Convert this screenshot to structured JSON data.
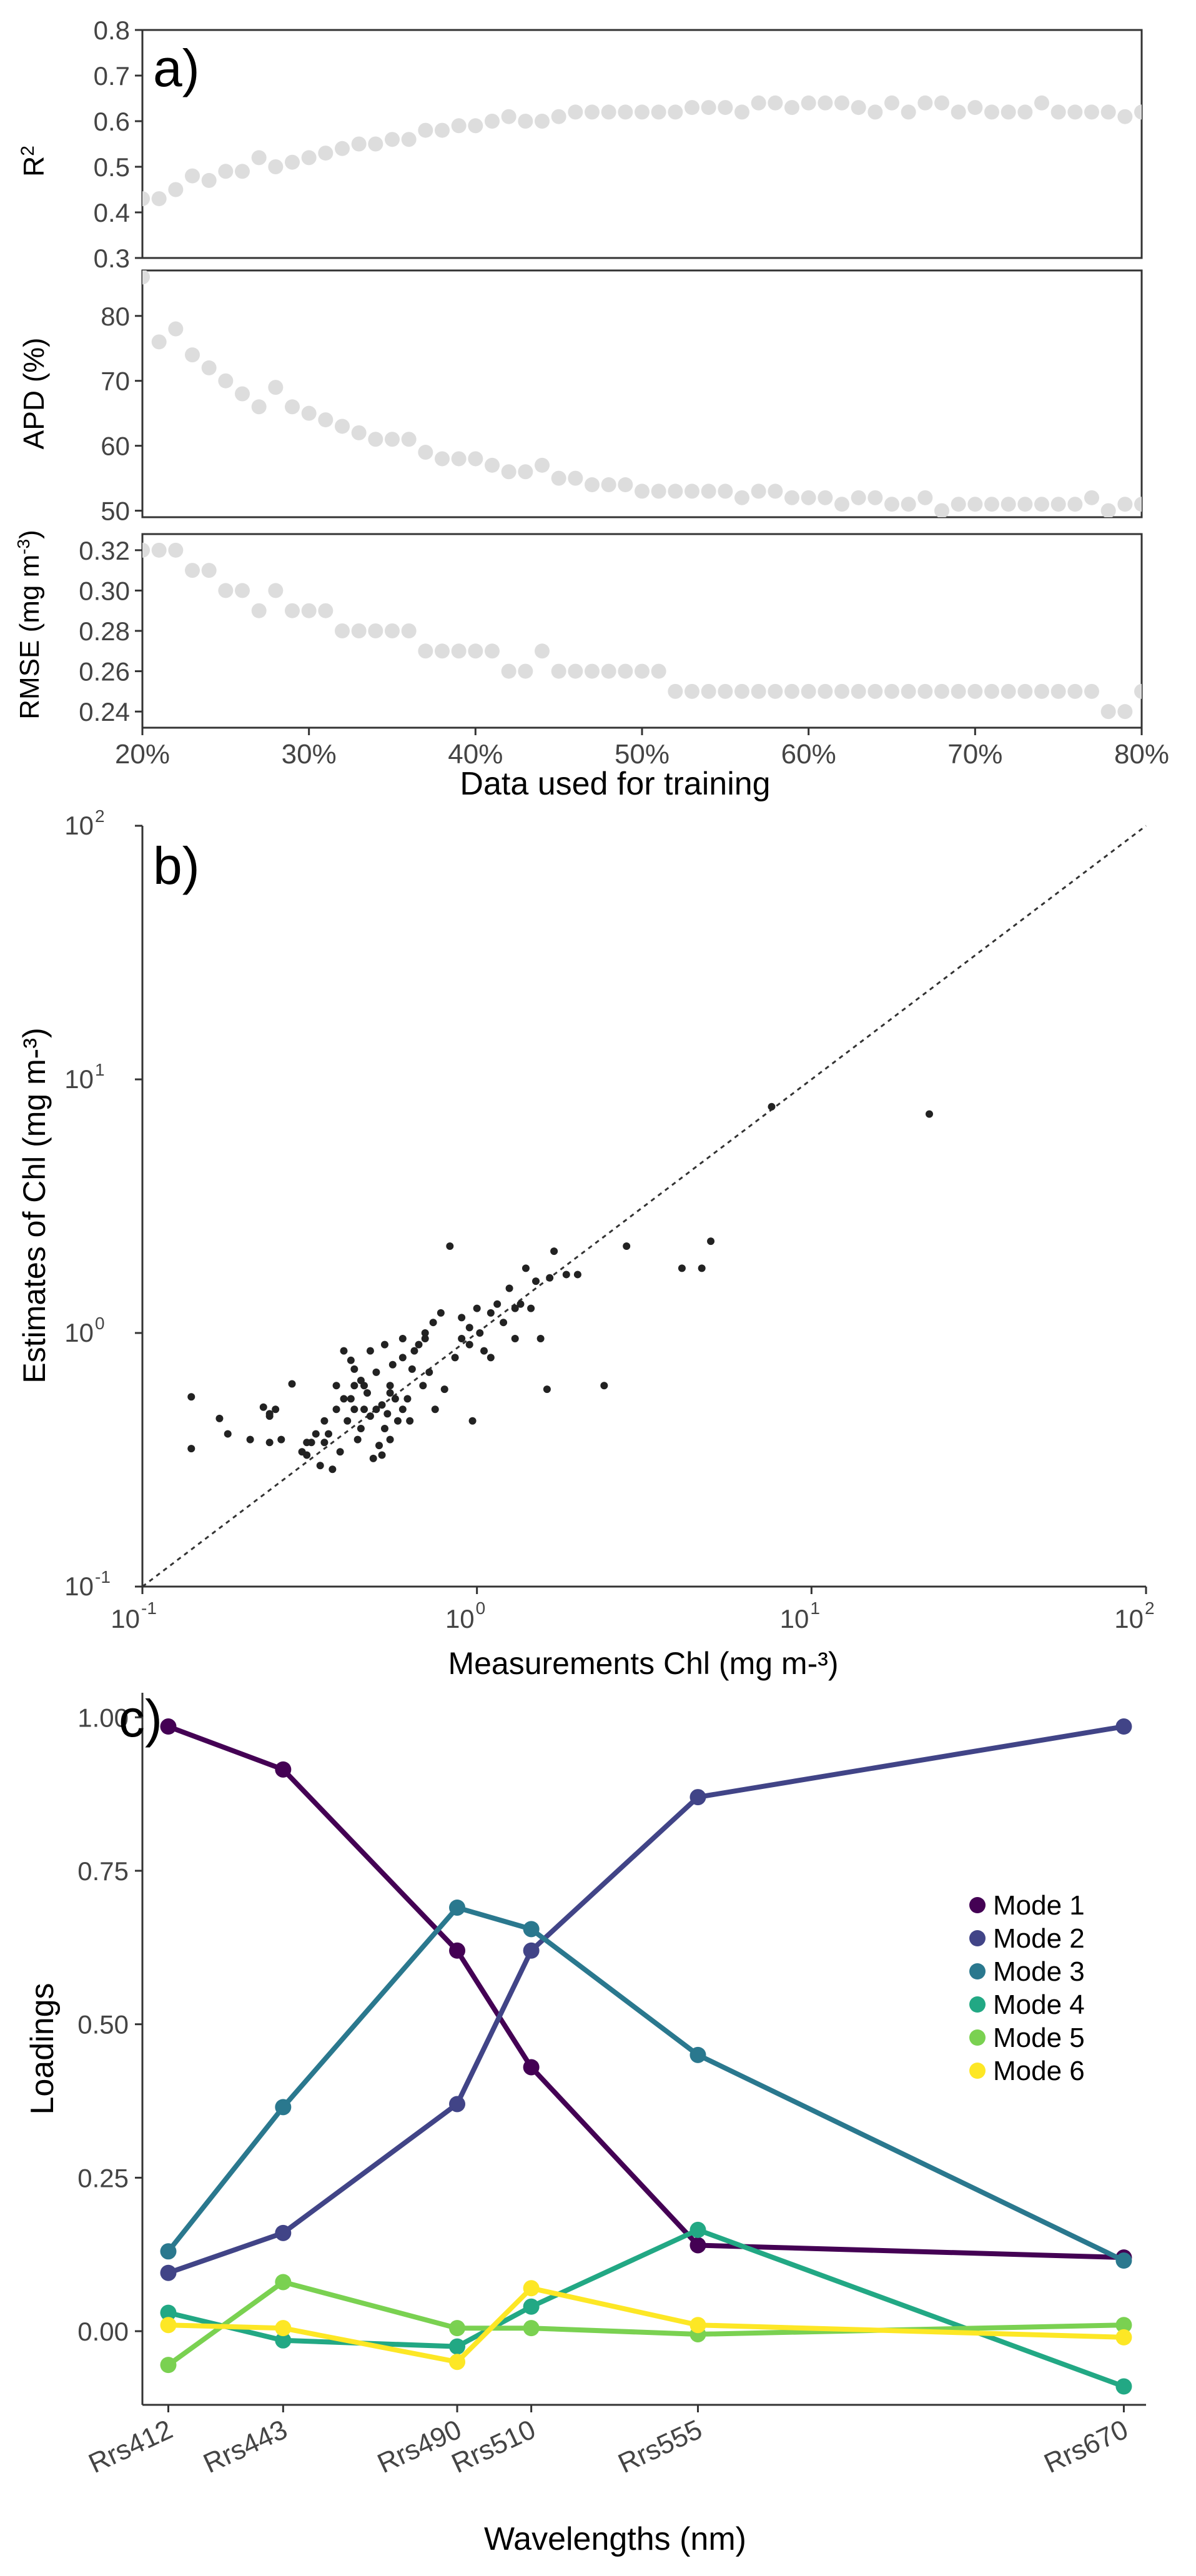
{
  "chart_data": [
    {
      "type": "scatter",
      "panel_label": "a)",
      "xlabel": "Data used for training",
      "x_ticks": [
        "20%",
        "30%",
        "40%",
        "50%",
        "60%",
        "70%",
        "80%"
      ],
      "xlim": [
        20,
        80
      ],
      "point_color": "#dddddd",
      "subplots": [
        {
          "ylabel": "R",
          "ylabel_sup": "2",
          "ylim": [
            0.3,
            0.8
          ],
          "y_ticks": [
            "0.3",
            "0.4",
            "0.5",
            "0.6",
            "0.7",
            "0.8"
          ],
          "y_tick_values": [
            0.3,
            0.4,
            0.5,
            0.6,
            0.7,
            0.8
          ],
          "x": [
            20,
            21,
            22,
            23,
            24,
            25,
            26,
            27,
            28,
            29,
            30,
            31,
            32,
            33,
            34,
            35,
            36,
            37,
            38,
            39,
            40,
            41,
            42,
            43,
            44,
            45,
            46,
            47,
            48,
            49,
            50,
            51,
            52,
            53,
            54,
            55,
            56,
            57,
            58,
            59,
            60,
            61,
            62,
            63,
            64,
            65,
            66,
            67,
            68,
            69,
            70,
            71,
            72,
            73,
            74,
            75,
            76,
            77,
            78,
            79,
            80
          ],
          "y": [
            0.43,
            0.43,
            0.45,
            0.48,
            0.47,
            0.49,
            0.49,
            0.52,
            0.5,
            0.51,
            0.52,
            0.53,
            0.54,
            0.55,
            0.55,
            0.56,
            0.56,
            0.58,
            0.58,
            0.59,
            0.59,
            0.6,
            0.61,
            0.6,
            0.6,
            0.61,
            0.62,
            0.62,
            0.62,
            0.62,
            0.62,
            0.62,
            0.62,
            0.63,
            0.63,
            0.63,
            0.62,
            0.64,
            0.64,
            0.63,
            0.64,
            0.64,
            0.64,
            0.63,
            0.62,
            0.64,
            0.62,
            0.64,
            0.64,
            0.62,
            0.63,
            0.62,
            0.62,
            0.62,
            0.64,
            0.62,
            0.62,
            0.62,
            0.62,
            0.61,
            0.62
          ]
        },
        {
          "ylabel": "APD (%)",
          "ylim": [
            49,
            87
          ],
          "y_ticks": [
            "50",
            "60",
            "70",
            "80"
          ],
          "y_tick_values": [
            50,
            60,
            70,
            80
          ],
          "x": [
            20,
            21,
            22,
            23,
            24,
            25,
            26,
            27,
            28,
            29,
            30,
            31,
            32,
            33,
            34,
            35,
            36,
            37,
            38,
            39,
            40,
            41,
            42,
            43,
            44,
            45,
            46,
            47,
            48,
            49,
            50,
            51,
            52,
            53,
            54,
            55,
            56,
            57,
            58,
            59,
            60,
            61,
            62,
            63,
            64,
            65,
            66,
            67,
            68,
            69,
            70,
            71,
            72,
            73,
            74,
            75,
            76,
            77,
            78,
            79,
            80
          ],
          "y": [
            86,
            76,
            78,
            74,
            72,
            70,
            68,
            66,
            69,
            66,
            65,
            64,
            63,
            62,
            61,
            61,
            61,
            59,
            58,
            58,
            58,
            57,
            56,
            56,
            57,
            55,
            55,
            54,
            54,
            54,
            53,
            53,
            53,
            53,
            53,
            53,
            52,
            53,
            53,
            52,
            52,
            52,
            51,
            52,
            52,
            51,
            51,
            52,
            50,
            51,
            51,
            51,
            51,
            51,
            51,
            51,
            51,
            52,
            50,
            51,
            51
          ]
        },
        {
          "ylabel": "RMSE (mg m",
          "ylabel_sup": "-3",
          "ylabel_tail": ")",
          "ylim": [
            0.232,
            0.328
          ],
          "y_ticks": [
            "0.24",
            "0.26",
            "0.28",
            "0.30",
            "0.32"
          ],
          "y_tick_values": [
            0.24,
            0.26,
            0.28,
            0.3,
            0.32
          ],
          "x": [
            20,
            21,
            22,
            23,
            24,
            25,
            26,
            27,
            28,
            29,
            30,
            31,
            32,
            33,
            34,
            35,
            36,
            37,
            38,
            39,
            40,
            41,
            42,
            43,
            44,
            45,
            46,
            47,
            48,
            49,
            50,
            51,
            52,
            53,
            54,
            55,
            56,
            57,
            58,
            59,
            60,
            61,
            62,
            63,
            64,
            65,
            66,
            67,
            68,
            69,
            70,
            71,
            72,
            73,
            74,
            75,
            76,
            77,
            78,
            79,
            80
          ],
          "y": [
            0.32,
            0.32,
            0.32,
            0.31,
            0.31,
            0.3,
            0.3,
            0.29,
            0.3,
            0.29,
            0.29,
            0.29,
            0.28,
            0.28,
            0.28,
            0.28,
            0.28,
            0.27,
            0.27,
            0.27,
            0.27,
            0.27,
            0.26,
            0.26,
            0.27,
            0.26,
            0.26,
            0.26,
            0.26,
            0.26,
            0.26,
            0.26,
            0.25,
            0.25,
            0.25,
            0.25,
            0.25,
            0.25,
            0.25,
            0.25,
            0.25,
            0.25,
            0.25,
            0.25,
            0.25,
            0.25,
            0.25,
            0.25,
            0.25,
            0.25,
            0.25,
            0.25,
            0.25,
            0.25,
            0.25,
            0.25,
            0.25,
            0.25,
            0.24,
            0.24,
            0.25
          ]
        }
      ]
    },
    {
      "type": "scatter",
      "panel_label": "b)",
      "xscale": "log",
      "yscale": "log",
      "xlim": [
        0.1,
        100
      ],
      "ylim": [
        0.1,
        100
      ],
      "x_tick_base": "10",
      "tick_exponents": [
        "-1",
        "0",
        "1",
        "2"
      ],
      "xlabel": "Measurements Chl (mg m-³)",
      "ylabel": "Estimates of Chl (mg m-³)",
      "identity_line": true,
      "point_color": "#222222",
      "x": [
        0.14,
        0.14,
        0.17,
        0.18,
        0.21,
        0.23,
        0.24,
        0.24,
        0.25,
        0.26,
        0.24,
        0.28,
        0.3,
        0.31,
        0.31,
        0.32,
        0.34,
        0.35,
        0.36,
        0.37,
        0.38,
        0.38,
        0.39,
        0.4,
        0.4,
        0.41,
        0.42,
        0.43,
        0.43,
        0.44,
        0.45,
        0.45,
        0.46,
        0.47,
        0.48,
        0.48,
        0.49,
        0.5,
        0.5,
        0.51,
        0.52,
        0.53,
        0.53,
        0.54,
        0.55,
        0.55,
        0.56,
        0.57,
        0.58,
        0.6,
        0.6,
        0.62,
        0.63,
        0.64,
        0.65,
        0.67,
        0.69,
        0.7,
        0.72,
        0.74,
        0.75,
        0.78,
        0.8,
        0.83,
        0.86,
        0.9,
        0.95,
        0.97,
        1.0,
        1.02,
        1.05,
        1.1,
        1.15,
        1.2,
        1.25,
        1.3,
        1.35,
        1.4,
        1.45,
        1.5,
        1.55,
        1.62,
        1.65,
        1.7,
        1.85,
        2.0,
        2.4,
        2.8,
        4.1,
        4.7,
        5.0,
        7.6,
        22.5,
        1.3,
        1.1,
        0.9,
        0.52,
        0.46,
        0.35,
        0.42,
        0.6,
        0.7,
        0.95,
        0.33,
        0.43,
        0.55
      ],
      "y": [
        0.56,
        0.35,
        0.46,
        0.4,
        0.38,
        0.51,
        0.37,
        0.48,
        0.5,
        0.38,
        0.47,
        0.63,
        0.34,
        0.37,
        0.33,
        0.37,
        0.3,
        0.37,
        0.4,
        0.29,
        0.5,
        0.62,
        0.34,
        0.55,
        0.85,
        0.45,
        0.78,
        0.5,
        0.72,
        0.38,
        0.42,
        0.65,
        0.5,
        0.58,
        0.47,
        0.85,
        0.32,
        0.5,
        0.7,
        0.36,
        0.33,
        0.42,
        0.9,
        0.48,
        0.38,
        0.62,
        0.75,
        0.55,
        0.45,
        0.5,
        0.95,
        0.55,
        0.45,
        0.72,
        0.85,
        0.9,
        0.62,
        1.0,
        0.7,
        1.1,
        0.5,
        1.2,
        0.6,
        2.2,
        0.8,
        0.95,
        0.9,
        0.45,
        1.25,
        1.0,
        0.85,
        1.2,
        1.3,
        1.1,
        1.5,
        0.95,
        1.3,
        1.8,
        1.25,
        1.6,
        0.95,
        0.6,
        1.65,
        2.1,
        1.7,
        1.7,
        0.62,
        2.2,
        1.8,
        1.8,
        2.3,
        7.8,
        7.3,
        1.25,
        0.8,
        1.15,
        0.52,
        0.62,
        0.45,
        0.55,
        0.8,
        0.95,
        1.05,
        0.4,
        0.62,
        0.58
      ]
    },
    {
      "type": "line",
      "panel_label": "c)",
      "xlabel": "Wavelengths (nm)",
      "ylabel": "Loadings",
      "categories": [
        "Rrs412",
        "Rrs443",
        "Rrs490",
        "Rrs510",
        "Rrs555",
        "Rrs670"
      ],
      "x_positions": [
        412,
        443,
        490,
        510,
        555,
        670
      ],
      "xlim": [
        405,
        676
      ],
      "ylim": [
        -0.12,
        1.04
      ],
      "y_ticks": [
        "0.00",
        "0.25",
        "0.50",
        "0.75",
        "1.00"
      ],
      "y_tick_values": [
        0,
        0.25,
        0.5,
        0.75,
        1.0
      ],
      "legend_position": "right",
      "series": [
        {
          "name": "Mode 1",
          "color": "#440154",
          "values": [
            0.985,
            0.915,
            0.62,
            0.43,
            0.14,
            0.12
          ]
        },
        {
          "name": "Mode 2",
          "color": "#414487",
          "values": [
            0.095,
            0.16,
            0.37,
            0.62,
            0.87,
            0.985
          ]
        },
        {
          "name": "Mode 3",
          "color": "#2a788e",
          "values": [
            0.13,
            0.365,
            0.69,
            0.655,
            0.45,
            0.115
          ]
        },
        {
          "name": "Mode 4",
          "color": "#22a884",
          "values": [
            0.03,
            -0.015,
            -0.025,
            0.04,
            0.165,
            -0.09
          ]
        },
        {
          "name": "Mode 5",
          "color": "#7ad151",
          "values": [
            -0.055,
            0.08,
            0.005,
            0.005,
            -0.005,
            0.01
          ]
        },
        {
          "name": "Mode 6",
          "color": "#fde725",
          "values": [
            0.01,
            0.005,
            -0.05,
            0.07,
            0.01,
            -0.01
          ]
        }
      ]
    }
  ]
}
